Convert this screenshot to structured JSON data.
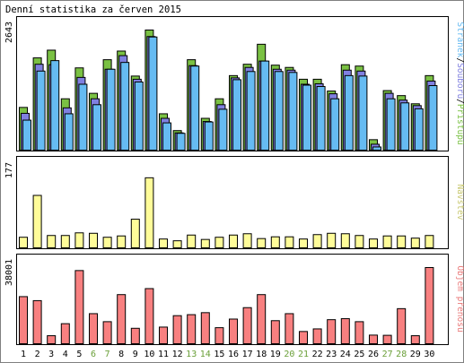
{
  "title": "Denní statistika za červen 2015",
  "colors": {
    "hits": "#7ac143",
    "files": "#8080e0",
    "pages": "#66bbf2",
    "visits": "#fffc99",
    "traffic": "#f88080",
    "day_normal": "#000000",
    "day_weekend": "#6a9f38",
    "legend_visits": "#c8c870",
    "legend_traffic": "#ea7979"
  },
  "chart_data": [
    {
      "type": "bar",
      "name": "hits-files-pages",
      "ymax_label": "2643",
      "ylim": [
        0,
        2643
      ],
      "legend": [
        {
          "text": "Stránek",
          "color": "pages"
        },
        {
          "text": "/",
          "color": "divider"
        },
        {
          "text": "Souborů",
          "color": "files"
        },
        {
          "text": "/",
          "color": "divider"
        },
        {
          "text": "Přístupů",
          "color": "hits"
        }
      ],
      "categories": [
        "1",
        "2",
        "3",
        "4",
        "5",
        "6",
        "7",
        "8",
        "9",
        "10",
        "11",
        "12",
        "13",
        "14",
        "15",
        "16",
        "17",
        "18",
        "19",
        "20",
        "21",
        "22",
        "23",
        "24",
        "25",
        "26",
        "27",
        "28",
        "29",
        "30"
      ],
      "series": [
        {
          "name": "Přístupů",
          "values": [
            940,
            2030,
            2200,
            1130,
            1810,
            1250,
            1990,
            2180,
            1630,
            2643,
            800,
            430,
            1990,
            700,
            1130,
            1640,
            1890,
            2330,
            1870,
            1820,
            1560,
            1560,
            1300,
            1880,
            1850,
            230,
            1310,
            1200,
            1020,
            1640
          ]
        },
        {
          "name": "Souborů",
          "values": [
            810,
            1890,
            1880,
            930,
            1600,
            1130,
            1780,
            2080,
            1560,
            2500,
            700,
            380,
            1860,
            630,
            1000,
            1590,
            1820,
            1960,
            1780,
            1760,
            1450,
            1460,
            1240,
            1760,
            1740,
            130,
            1250,
            1100,
            980,
            1520
          ]
        },
        {
          "name": "Stránek",
          "values": [
            660,
            1740,
            1970,
            800,
            1450,
            1000,
            1780,
            1930,
            1500,
            2490,
            600,
            370,
            1850,
            620,
            900,
            1550,
            1730,
            1960,
            1730,
            1710,
            1430,
            1400,
            1130,
            1640,
            1630,
            70,
            1130,
            1040,
            910,
            1420
          ]
        }
      ]
    },
    {
      "type": "bar",
      "name": "visits",
      "ymax_label": "177",
      "ylim": [
        0,
        177
      ],
      "legend": [
        {
          "text": "Návštěv",
          "color": "legend_visits"
        }
      ],
      "categories": [
        "1",
        "2",
        "3",
        "4",
        "5",
        "6",
        "7",
        "8",
        "9",
        "10",
        "11",
        "12",
        "13",
        "14",
        "15",
        "16",
        "17",
        "18",
        "19",
        "20",
        "21",
        "22",
        "23",
        "24",
        "25",
        "26",
        "27",
        "28",
        "29",
        "30"
      ],
      "series": [
        {
          "name": "Návštěv",
          "values": [
            24,
            119,
            28,
            28,
            34,
            33,
            24,
            27,
            65,
            159,
            20,
            16,
            29,
            19,
            24,
            29,
            32,
            21,
            25,
            25,
            20,
            30,
            33,
            32,
            28,
            20,
            27,
            27,
            22,
            28
          ]
        }
      ]
    },
    {
      "type": "bar",
      "name": "traffic",
      "ymax_label": "38001",
      "ylim": [
        0,
        38001
      ],
      "legend": [
        {
          "text": "Objem přenosu",
          "color": "legend_traffic"
        }
      ],
      "categories": [
        "1",
        "2",
        "3",
        "4",
        "5",
        "6",
        "7",
        "8",
        "9",
        "10",
        "11",
        "12",
        "13",
        "14",
        "15",
        "16",
        "17",
        "18",
        "19",
        "20",
        "21",
        "22",
        "23",
        "24",
        "25",
        "26",
        "27",
        "28",
        "29",
        "30"
      ],
      "series": [
        {
          "name": "Objem přenosu",
          "values": [
            23500,
            21500,
            4000,
            10000,
            36500,
            15000,
            11000,
            24500,
            7700,
            27500,
            8300,
            14000,
            14500,
            15500,
            8000,
            12300,
            18000,
            24500,
            11500,
            15000,
            6100,
            7400,
            12000,
            12500,
            11000,
            4300,
            4200,
            17500,
            4000,
            38001
          ]
        }
      ]
    }
  ],
  "days": [
    {
      "label": "1",
      "weekend": false
    },
    {
      "label": "2",
      "weekend": false
    },
    {
      "label": "3",
      "weekend": false
    },
    {
      "label": "4",
      "weekend": false
    },
    {
      "label": "5",
      "weekend": false
    },
    {
      "label": "6",
      "weekend": true
    },
    {
      "label": "7",
      "weekend": true
    },
    {
      "label": "8",
      "weekend": false
    },
    {
      "label": "9",
      "weekend": false
    },
    {
      "label": "10",
      "weekend": false
    },
    {
      "label": "11",
      "weekend": false
    },
    {
      "label": "12",
      "weekend": false
    },
    {
      "label": "13",
      "weekend": true
    },
    {
      "label": "14",
      "weekend": true
    },
    {
      "label": "15",
      "weekend": false
    },
    {
      "label": "16",
      "weekend": false
    },
    {
      "label": "17",
      "weekend": false
    },
    {
      "label": "18",
      "weekend": false
    },
    {
      "label": "19",
      "weekend": false
    },
    {
      "label": "20",
      "weekend": true
    },
    {
      "label": "21",
      "weekend": true
    },
    {
      "label": "22",
      "weekend": false
    },
    {
      "label": "23",
      "weekend": false
    },
    {
      "label": "24",
      "weekend": false
    },
    {
      "label": "25",
      "weekend": false
    },
    {
      "label": "26",
      "weekend": false
    },
    {
      "label": "27",
      "weekend": true
    },
    {
      "label": "28",
      "weekend": true
    },
    {
      "label": "29",
      "weekend": false
    },
    {
      "label": "30",
      "weekend": false
    }
  ]
}
